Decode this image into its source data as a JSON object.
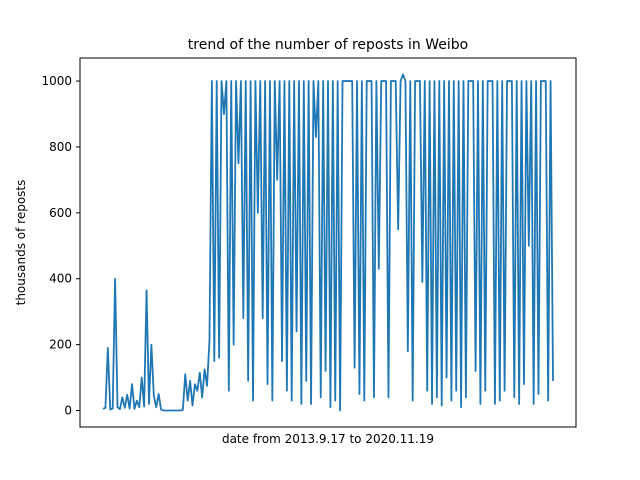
{
  "chart_data": {
    "type": "line",
    "title": "trend of the number of reposts in Weibo",
    "xlabel": "date from 2013.9.17 to 2020.11.19",
    "ylabel": "thousands of reposts",
    "ylim": [
      -50,
      1070
    ],
    "yticks": [
      0,
      200,
      400,
      600,
      800,
      1000
    ],
    "x_ticks_shown": false,
    "grid": false,
    "series": [
      {
        "color": "#1f77b4",
        "values": [
          5,
          8,
          190,
          3,
          6,
          400,
          10,
          4,
          40,
          8,
          48,
          6,
          80,
          5,
          30,
          10,
          100,
          12,
          365,
          20,
          200,
          45,
          10,
          50,
          3,
          0,
          0,
          0,
          0,
          0,
          0,
          0,
          0,
          2,
          110,
          30,
          90,
          15,
          80,
          60,
          115,
          40,
          125,
          75,
          210,
          1000,
          150,
          1000,
          160,
          1000,
          900,
          1000,
          60,
          1000,
          200,
          1000,
          750,
          1000,
          280,
          1000,
          90,
          1000,
          30,
          1000,
          600,
          1000,
          280,
          1000,
          80,
          1000,
          30,
          1000,
          700,
          1000,
          150,
          1000,
          60,
          1000,
          30,
          1000,
          240,
          1000,
          20,
          1000,
          90,
          1000,
          20,
          1000,
          830,
          1000,
          40,
          1000,
          120,
          1000,
          10,
          1000,
          30,
          1000,
          0,
          1000,
          1000,
          1000,
          1000,
          1000,
          130,
          1000,
          50,
          1000,
          30,
          1000,
          1000,
          1000,
          40,
          1000,
          430,
          1000,
          1000,
          1000,
          40,
          1000,
          1000,
          1000,
          550,
          1000,
          1020,
          1000,
          180,
          1000,
          30,
          1000,
          1000,
          1000,
          390,
          1000,
          60,
          1000,
          20,
          1000,
          40,
          1000,
          15,
          1000,
          100,
          1000,
          30,
          1000,
          60,
          1000,
          10,
          1000,
          40,
          1000,
          1000,
          1000,
          120,
          1000,
          20,
          1000,
          60,
          1000,
          1000,
          1000,
          20,
          1000,
          30,
          1000,
          60,
          1000,
          1000,
          1000,
          40,
          1000,
          20,
          1000,
          80,
          1000,
          500,
          1000,
          20,
          1000,
          50,
          1000,
          1000,
          1000,
          30,
          1000,
          90
        ]
      }
    ]
  }
}
